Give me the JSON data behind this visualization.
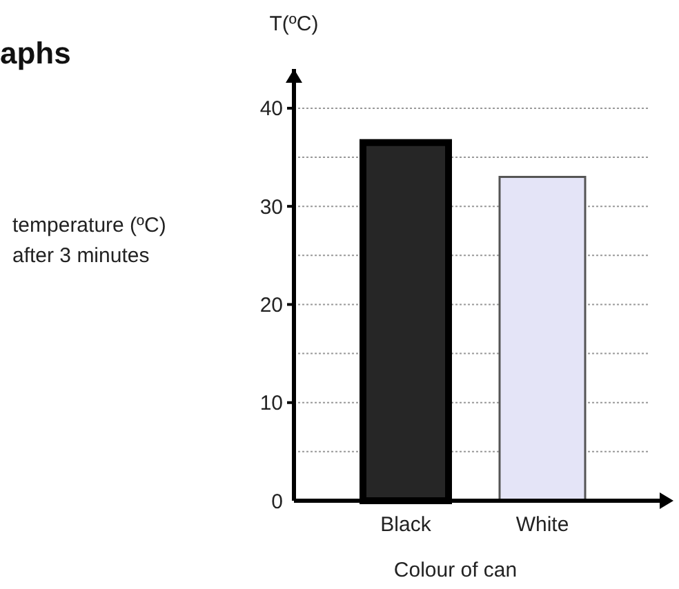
{
  "chart_data": {
    "type": "bar",
    "title": "aphs",
    "ylabel": "T(ºC)",
    "xlabel": "Colour of can",
    "annotations": [
      "temperature (ºC) after 3 minutes"
    ],
    "categories": [
      "Black",
      "White"
    ],
    "values": [
      36.5,
      33
    ],
    "colors": [
      "#262626",
      "#e4e4f7"
    ],
    "ylim": [
      0,
      44
    ],
    "yticks": [
      0,
      {
        "value": 5,
        "label": null
      },
      10,
      {
        "value": 15,
        "label": null
      },
      20,
      {
        "value": 25,
        "label": null
      },
      30,
      {
        "value": 35,
        "label": null
      },
      40
    ],
    "grid": "y"
  }
}
